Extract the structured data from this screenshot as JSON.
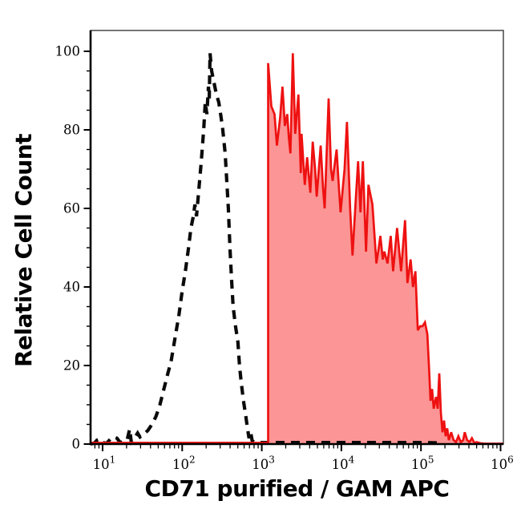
{
  "figure": {
    "background": "#ffffff",
    "y_axis_title": "Relative Cell Count",
    "x_axis_title": "CD71 purified / GAM APC"
  },
  "colors": {
    "axis": "#000000",
    "frame": "#3a3a3a",
    "tick_label": "#000000",
    "black_curve": "#0a0a0a",
    "red_stroke": "#ee1111",
    "red_fill": "#fc9595",
    "red_baseline": "#b22222"
  },
  "chart_data": {
    "type": "area",
    "title": "",
    "xlabel": "CD71 purified / GAM APC",
    "ylabel": "Relative Cell Count",
    "x_scale": "log10",
    "x_domain_log": [
      0.85,
      6.03
    ],
    "ylim": [
      0,
      105.3
    ],
    "grid": false,
    "legend": "none",
    "y_major_ticks": [
      0,
      20,
      40,
      60,
      80,
      100
    ],
    "y_minor_step": 5,
    "x_major_tick_exponents": [
      "1",
      "2",
      "3",
      "4",
      "5",
      "6"
    ],
    "x_tick_base": "10",
    "x_minor_mantissas": [
      2,
      3,
      4,
      5,
      6,
      7,
      8,
      9
    ],
    "series": [
      {
        "name": "black_dashed_control_histogram",
        "style": "dashed",
        "color": "#0a0a0a",
        "fill": "none",
        "points": [
          [
            0.85,
            0
          ],
          [
            0.9,
            0.3
          ],
          [
            0.93,
            1.0
          ],
          [
            0.96,
            1.2
          ],
          [
            1.0,
            0.4
          ],
          [
            1.05,
            0.2
          ],
          [
            1.1,
            1.3
          ],
          [
            1.14,
            1.8
          ],
          [
            1.18,
            1.5
          ],
          [
            1.22,
            0.4
          ],
          [
            1.27,
            0.6
          ],
          [
            1.31,
            1.2
          ],
          [
            1.34,
            3.8
          ],
          [
            1.36,
            0.6
          ],
          [
            1.4,
            1.5
          ],
          [
            1.44,
            2.8
          ],
          [
            1.47,
            1.8
          ],
          [
            1.52,
            2.5
          ],
          [
            1.57,
            3.5
          ],
          [
            1.62,
            5
          ],
          [
            1.67,
            7
          ],
          [
            1.72,
            10
          ],
          [
            1.77,
            14
          ],
          [
            1.82,
            18
          ],
          [
            1.86,
            21
          ],
          [
            1.91,
            27
          ],
          [
            1.96,
            33
          ],
          [
            2.0,
            39
          ],
          [
            2.04,
            44
          ],
          [
            2.08,
            50
          ],
          [
            2.11,
            55
          ],
          [
            2.14,
            58
          ],
          [
            2.16,
            61
          ],
          [
            2.18,
            58
          ],
          [
            2.21,
            65
          ],
          [
            2.24,
            72
          ],
          [
            2.27,
            80
          ],
          [
            2.29,
            87
          ],
          [
            2.31,
            84
          ],
          [
            2.33,
            91
          ],
          [
            2.34,
            88
          ],
          [
            2.35,
            99.5
          ],
          [
            2.37,
            95
          ],
          [
            2.4,
            92
          ],
          [
            2.43,
            89
          ],
          [
            2.46,
            87
          ],
          [
            2.49,
            83
          ],
          [
            2.51,
            80
          ],
          [
            2.54,
            74
          ],
          [
            2.56,
            67
          ],
          [
            2.58,
            60
          ],
          [
            2.6,
            50
          ],
          [
            2.62,
            42
          ],
          [
            2.64,
            35
          ],
          [
            2.67,
            30
          ],
          [
            2.7,
            26
          ],
          [
            2.72,
            20
          ],
          [
            2.74,
            16
          ],
          [
            2.77,
            11
          ],
          [
            2.8,
            7
          ],
          [
            2.82,
            4
          ],
          [
            2.84,
            1.5
          ],
          [
            2.86,
            3
          ],
          [
            2.88,
            0.8
          ],
          [
            2.92,
            0.5
          ],
          [
            3.0,
            0.4
          ],
          [
            3.1,
            0.4
          ],
          [
            3.25,
            0.4
          ],
          [
            3.4,
            0.4
          ],
          [
            3.55,
            0.4
          ],
          [
            3.7,
            0.4
          ],
          [
            3.85,
            0.4
          ],
          [
            4.0,
            0.4
          ],
          [
            4.15,
            0.4
          ],
          [
            4.3,
            0.4
          ],
          [
            4.45,
            0.4
          ],
          [
            4.6,
            0.4
          ],
          [
            4.75,
            0.4
          ],
          [
            4.9,
            0.4
          ],
          [
            5.05,
            0.4
          ],
          [
            5.2,
            0.3
          ]
        ]
      },
      {
        "name": "red_filled_sample_histogram",
        "style": "solid",
        "color": "#ee1111",
        "fill": "#fc9595",
        "points": [
          [
            0.85,
            0.3
          ],
          [
            3.08,
            0.3
          ],
          [
            3.08,
            97
          ],
          [
            3.12,
            86
          ],
          [
            3.16,
            84
          ],
          [
            3.19,
            76
          ],
          [
            3.23,
            83
          ],
          [
            3.26,
            91
          ],
          [
            3.29,
            81
          ],
          [
            3.32,
            84
          ],
          [
            3.34,
            78
          ],
          [
            3.36,
            74
          ],
          [
            3.39,
            99.5
          ],
          [
            3.42,
            79
          ],
          [
            3.46,
            89
          ],
          [
            3.49,
            69
          ],
          [
            3.5,
            79
          ],
          [
            3.54,
            66
          ],
          [
            3.57,
            73
          ],
          [
            3.61,
            64
          ],
          [
            3.64,
            77
          ],
          [
            3.67,
            70
          ],
          [
            3.69,
            63
          ],
          [
            3.74,
            76
          ],
          [
            3.77,
            65
          ],
          [
            3.79,
            60
          ],
          [
            3.84,
            88
          ],
          [
            3.87,
            70
          ],
          [
            3.89,
            67
          ],
          [
            3.94,
            75
          ],
          [
            3.97,
            65
          ],
          [
            3.99,
            59
          ],
          [
            4.04,
            70
          ],
          [
            4.07,
            82
          ],
          [
            4.11,
            60
          ],
          [
            4.14,
            48
          ],
          [
            4.18,
            62
          ],
          [
            4.21,
            72
          ],
          [
            4.24,
            59
          ],
          [
            4.27,
            72
          ],
          [
            4.31,
            49
          ],
          [
            4.34,
            66
          ],
          [
            4.37,
            63
          ],
          [
            4.39,
            61
          ],
          [
            4.44,
            46
          ],
          [
            4.47,
            50
          ],
          [
            4.49,
            53
          ],
          [
            4.52,
            47
          ],
          [
            4.54,
            49
          ],
          [
            4.58,
            46
          ],
          [
            4.62,
            53
          ],
          [
            4.65,
            44
          ],
          [
            4.7,
            55
          ],
          [
            4.75,
            44
          ],
          [
            4.8,
            57
          ],
          [
            4.83,
            41
          ],
          [
            4.87,
            47
          ],
          [
            4.9,
            40
          ],
          [
            4.93,
            44
          ],
          [
            4.96,
            29
          ],
          [
            4.99,
            30
          ],
          [
            5.02,
            30
          ],
          [
            5.05,
            31
          ],
          [
            5.08,
            28
          ],
          [
            5.1,
            20
          ],
          [
            5.12,
            11
          ],
          [
            5.14,
            14
          ],
          [
            5.16,
            9
          ],
          [
            5.19,
            12
          ],
          [
            5.21,
            9
          ],
          [
            5.23,
            18
          ],
          [
            5.25,
            8
          ],
          [
            5.27,
            3
          ],
          [
            5.29,
            6
          ],
          [
            5.31,
            2
          ],
          [
            5.33,
            4
          ],
          [
            5.35,
            1
          ],
          [
            5.38,
            3
          ],
          [
            5.41,
            1
          ],
          [
            5.44,
            0.5
          ],
          [
            5.47,
            2
          ],
          [
            5.5,
            0.5
          ],
          [
            5.53,
            1
          ],
          [
            5.55,
            3
          ],
          [
            5.58,
            1
          ],
          [
            5.61,
            0.5
          ],
          [
            5.64,
            1.5
          ],
          [
            5.67,
            0.3
          ],
          [
            5.7,
            0.5
          ],
          [
            5.75,
            0.2
          ],
          [
            5.8,
            0.1
          ],
          [
            6.03,
            0.1
          ]
        ]
      }
    ]
  }
}
